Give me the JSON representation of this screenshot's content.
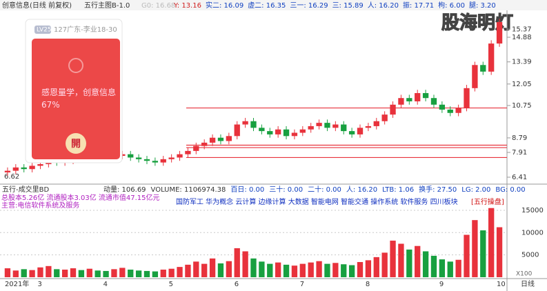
{
  "header": {
    "title": "创意信息(日线 前复权)",
    "indicator": "五行主图B-1.0",
    "g0": "G0: 16.68",
    "y": "Y: 13.16",
    "stats": [
      "实二: 16.09",
      "虚二: 16.35",
      "三一: 16.29",
      "三: 15.89",
      "人: 16.20",
      "振: 17.71",
      "枸: 6.00",
      "腿: 3.20"
    ],
    "watermark": "股海明灯"
  },
  "card": {
    "level": "LV25",
    "user": "127广东-李业18-30",
    "message": "感恩量学，创意信息67%",
    "button": "開"
  },
  "chart_data": {
    "type": "candlestick",
    "categories": [
      "2021年",
      null,
      null,
      null,
      "3",
      null,
      null,
      null,
      null,
      null,
      null,
      null,
      "4",
      null,
      null,
      null,
      null,
      null,
      null,
      null,
      "5",
      null,
      null,
      null,
      null,
      null,
      null,
      null,
      "6",
      null,
      null,
      null,
      null,
      null,
      null,
      null,
      "7",
      null,
      null,
      null,
      null,
      null,
      null,
      null,
      "8",
      null,
      null,
      null,
      null,
      null,
      null,
      null,
      null,
      "9",
      null,
      null,
      null,
      null,
      null,
      null,
      "10"
    ],
    "open": [
      6.7,
      6.8,
      7.0,
      6.9,
      7.1,
      7.2,
      7.5,
      7.3,
      7.4,
      7.6,
      7.5,
      7.7,
      7.6,
      7.5,
      7.7,
      7.8,
      7.6,
      7.5,
      7.4,
      7.3,
      7.5,
      7.6,
      7.8,
      8.0,
      8.3,
      8.5,
      8.8,
      8.6,
      8.9,
      9.6,
      9.8,
      9.4,
      9.2,
      9.0,
      9.3,
      8.9,
      9.1,
      9.3,
      9.5,
      9.7,
      9.4,
      9.6,
      9.2,
      9.0,
      9.4,
      9.5,
      9.8,
      10.2,
      10.8,
      11.2,
      11.0,
      11.5,
      11.2,
      10.8,
      10.5,
      10.3,
      10.6,
      11.8,
      13.2,
      12.8,
      14.5
    ],
    "high": [
      7.0,
      7.2,
      7.2,
      7.3,
      7.4,
      7.7,
      7.7,
      7.6,
      7.8,
      7.8,
      7.9,
      7.9,
      7.8,
      7.9,
      8.0,
      8.0,
      7.8,
      7.7,
      7.6,
      7.7,
      7.8,
      8.0,
      8.2,
      8.5,
      8.7,
      9.0,
      9.0,
      9.1,
      9.8,
      10.0,
      10.0,
      9.6,
      9.4,
      9.5,
      9.5,
      9.3,
      9.5,
      9.7,
      9.9,
      9.9,
      9.8,
      9.8,
      9.4,
      9.6,
      9.7,
      10.0,
      10.4,
      11.0,
      11.4,
      11.4,
      11.7,
      11.7,
      11.4,
      11.0,
      10.7,
      10.8,
      12.0,
      13.4,
      13.4,
      14.7,
      16.0
    ],
    "low": [
      6.5,
      6.6,
      6.7,
      6.7,
      6.9,
      7.0,
      7.1,
      7.1,
      7.2,
      7.3,
      7.3,
      7.4,
      7.3,
      7.3,
      7.5,
      7.4,
      7.3,
      7.2,
      7.1,
      7.1,
      7.3,
      7.4,
      7.6,
      7.8,
      8.1,
      8.3,
      8.4,
      8.4,
      8.7,
      9.4,
      9.2,
      9.0,
      8.8,
      8.8,
      8.7,
      8.7,
      8.9,
      9.1,
      9.3,
      9.2,
      9.2,
      9.0,
      8.8,
      8.8,
      9.2,
      9.3,
      9.6,
      10.0,
      10.6,
      10.8,
      10.8,
      11.0,
      10.6,
      10.3,
      10.1,
      10.1,
      10.4,
      11.6,
      12.6,
      12.6,
      14.3
    ],
    "close": [
      6.8,
      7.0,
      6.9,
      7.1,
      7.2,
      7.5,
      7.3,
      7.4,
      7.6,
      7.5,
      7.7,
      7.6,
      7.5,
      7.7,
      7.8,
      7.6,
      7.5,
      7.4,
      7.3,
      7.5,
      7.6,
      7.8,
      8.0,
      8.3,
      8.5,
      8.8,
      8.6,
      8.9,
      9.6,
      9.8,
      9.4,
      9.2,
      9.0,
      9.3,
      8.9,
      9.1,
      9.3,
      9.5,
      9.7,
      9.4,
      9.6,
      9.2,
      9.0,
      9.4,
      9.5,
      9.8,
      10.2,
      10.8,
      11.2,
      11.0,
      11.5,
      11.2,
      10.8,
      10.5,
      10.3,
      10.6,
      11.8,
      13.2,
      12.8,
      14.5,
      15.8
    ],
    "levels": [
      7.6,
      8.2,
      8.35,
      10.6
    ],
    "up_color": "#e8323c",
    "down_color": "#18a040",
    "level_color": "#e8323c",
    "ylim": [
      6.2,
      16.3
    ],
    "yticks": [
      15.37,
      14.88,
      13.39,
      12.05,
      10.75,
      8.79,
      7.91,
      6.41
    ],
    "low_label": "6.62",
    "period": "日线",
    "volume": {
      "title": "五行-成交里BD",
      "stats": [
        "动量: 106.69",
        "VOLUME: 1106974.38",
        "百日: 0.00",
        "三十: 0.00",
        "二十: 0.00",
        "人: 16.20",
        "LTB: 1.06",
        "换手: 27.50",
        "LG: 2.00",
        "BG: 0.00"
      ],
      "info": [
        "总股本5.26亿 流通股本3.03亿 流通市值47.15亿元",
        "主营:电信软件系统及服务"
      ],
      "concepts": "国防军工 华为概念 云计算 边缘计算 大数据 智能电网 智能交通 操作系统 软件服务 四川板块",
      "tag": "[五行操盘]",
      "unit": "X100",
      "values": [
        2000,
        1500,
        1800,
        1600,
        2200,
        2500,
        1800,
        1700,
        2000,
        1600,
        1900,
        1500,
        1400,
        1800,
        2100,
        1700,
        1500,
        1400,
        1300,
        1700,
        1900,
        2300,
        2800,
        3500,
        3000,
        4200,
        3100,
        3600,
        6500,
        5800,
        4200,
        3500,
        3000,
        3300,
        2800,
        2600,
        3000,
        3300,
        3600,
        3000,
        3200,
        2900,
        2700,
        3400,
        3800,
        4500,
        5500,
        8200,
        7500,
        6200,
        7000,
        5800,
        4800,
        4000,
        3500,
        3900,
        9500,
        12800,
        10500,
        15500,
        11200
      ],
      "ylim": [
        0,
        17000
      ],
      "yticks": [
        5000,
        10000,
        15000
      ]
    }
  }
}
